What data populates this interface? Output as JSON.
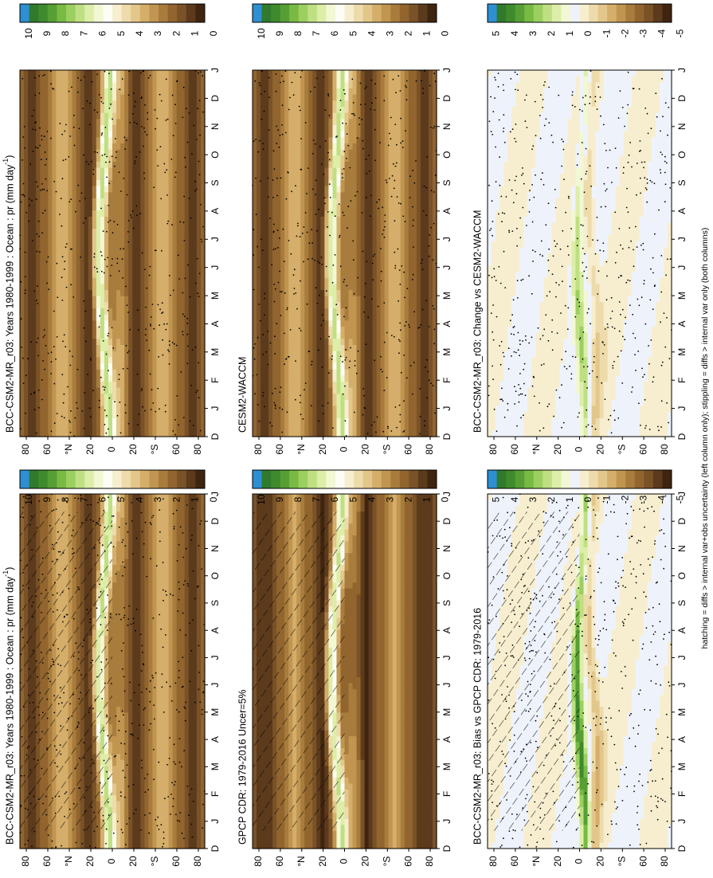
{
  "palettes": {
    "precip": [
      "#3f2510",
      "#5c3a1c",
      "#7a5228",
      "#92652f",
      "#a87c3c",
      "#c19550",
      "#d4ae6a",
      "#e3c68a",
      "#eedbab",
      "#f7eed0",
      "#fdfdf6",
      "#f2f7d4",
      "#dceea8",
      "#bfe082",
      "#9bcf60",
      "#78ba44",
      "#579f35",
      "#3e8a2c",
      "#2f7a2c",
      "#2e8fd2"
    ],
    "diff": [
      "#3f2510",
      "#5c3a1c",
      "#7a5228",
      "#92652f",
      "#a87c3c",
      "#c19550",
      "#d4ae6a",
      "#e3c68a",
      "#eedbab",
      "#f7eed0",
      "#eef3fb",
      "#f2f7d4",
      "#dceea8",
      "#bfe082",
      "#9bcf60",
      "#78ba44",
      "#579f35",
      "#3e8a2c",
      "#2f7a2c",
      "#2e8fd2"
    ]
  },
  "colorbars": {
    "precip_ticks": [
      "10",
      "9",
      "8",
      "7",
      "6",
      "5",
      "4",
      "3",
      "2",
      "1",
      "0"
    ],
    "diff_ticks": [
      "5",
      "4",
      "3",
      "2",
      "1",
      "0",
      "-1",
      "-2",
      "-3",
      "-4",
      "-5"
    ]
  },
  "footer": "hatching = diffs > internal var+obs uncertainty (left column only); stippling = diffs > internal var only (both columns)",
  "chart_data": [
    {
      "id": "bcc-left",
      "type": "heatmap",
      "title": "BCC-CSM2-MR_r03: Years 1980-1999 : Ocean : pr (mm day",
      "title_sup": "-1",
      "title_end": ")",
      "xlabel": "",
      "ylabel": "",
      "month_ticks": [
        "D",
        "J",
        "F",
        "M",
        "A",
        "M",
        "J",
        "J",
        "A",
        "S",
        "O",
        "N",
        "D",
        "J"
      ],
      "lat_ticks": [
        "80",
        "60",
        "°N",
        "20",
        "0",
        "20",
        "°S",
        "60",
        "80"
      ],
      "lat_range": [
        -90,
        90
      ],
      "palette": "precip",
      "hatching": true,
      "stippling": true,
      "colorbar": "precip"
    },
    {
      "id": "bcc-right",
      "type": "heatmap",
      "title": "BCC-CSM2-MR_r03: Years 1980-1999 : Ocean : pr (mm day",
      "title_sup": "-1",
      "title_end": ")",
      "xlabel": "",
      "ylabel": "",
      "month_ticks": [
        "D",
        "J",
        "F",
        "M",
        "A",
        "M",
        "J",
        "J",
        "A",
        "S",
        "O",
        "N",
        "D",
        "J"
      ],
      "lat_ticks": [
        "80",
        "60",
        "°N",
        "20",
        "0",
        "20",
        "°S",
        "60",
        "80"
      ],
      "lat_range": [
        -90,
        90
      ],
      "palette": "precip",
      "hatching": false,
      "stippling": true,
      "colorbar": "precip"
    },
    {
      "id": "gpcp",
      "type": "heatmap",
      "title": "GPCP CDR: 1979-2016 Uncer=5%",
      "month_ticks": [
        "D",
        "J",
        "F",
        "M",
        "A",
        "M",
        "J",
        "J",
        "A",
        "S",
        "O",
        "N",
        "D",
        "J"
      ],
      "lat_ticks": [
        "80",
        "60",
        "°N",
        "20",
        "0",
        "20",
        "°S",
        "60",
        "80"
      ],
      "lat_range": [
        -90,
        90
      ],
      "palette": "precip",
      "hatching": true,
      "stippling": false,
      "colorbar": "precip"
    },
    {
      "id": "cesm",
      "type": "heatmap",
      "title": "CESM2-WACCM",
      "month_ticks": [
        "D",
        "J",
        "F",
        "M",
        "A",
        "M",
        "J",
        "J",
        "A",
        "S",
        "O",
        "N",
        "D",
        "J"
      ],
      "lat_ticks": [
        "80",
        "60",
        "°N",
        "20",
        "0",
        "20",
        "°S",
        "60",
        "80"
      ],
      "lat_range": [
        -90,
        90
      ],
      "palette": "precip",
      "hatching": false,
      "stippling": true,
      "colorbar": "precip"
    },
    {
      "id": "bias",
      "type": "heatmap",
      "title": "BCC-CSM2-MR_r03: Bias vs GPCP CDR: 1979-2016",
      "month_ticks": [
        "D",
        "J",
        "F",
        "M",
        "A",
        "M",
        "J",
        "J",
        "A",
        "S",
        "O",
        "N",
        "D",
        "J"
      ],
      "lat_ticks": [
        "80",
        "60",
        "°N",
        "20",
        "0",
        "20",
        "°S",
        "60",
        "80"
      ],
      "lat_range": [
        -90,
        90
      ],
      "palette": "diff",
      "hatching": true,
      "stippling": true,
      "colorbar": "diff"
    },
    {
      "id": "change",
      "type": "heatmap",
      "title": "BCC-CSM2-MR_r03: Change vs CESM2-WACCM",
      "month_ticks": [
        "D",
        "J",
        "F",
        "M",
        "A",
        "M",
        "J",
        "J",
        "A",
        "S",
        "O",
        "N",
        "D",
        "J"
      ],
      "lat_ticks": [
        "80",
        "60",
        "°N",
        "20",
        "0",
        "20",
        "°S",
        "60",
        "80"
      ],
      "lat_range": [
        -90,
        90
      ],
      "palette": "diff",
      "hatching": false,
      "stippling": true,
      "colorbar": "diff"
    }
  ]
}
